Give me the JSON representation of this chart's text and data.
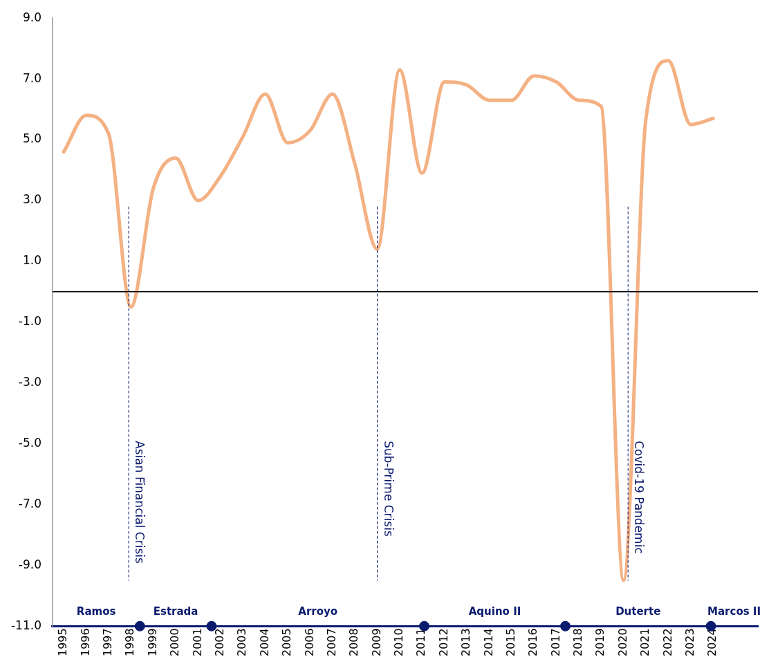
{
  "chart_data": {
    "type": "line",
    "x": [
      1995,
      1996,
      1997,
      1998,
      1999,
      2000,
      2001,
      2002,
      2003,
      2004,
      2005,
      2006,
      2007,
      2008,
      2009,
      2010,
      2011,
      2012,
      2013,
      2014,
      2015,
      2016,
      2017,
      2018,
      2019,
      2020,
      2021,
      2022,
      2023,
      2024
    ],
    "series": [
      {
        "type": "line",
        "color": "#f4b183",
        "marker": "none",
        "values": [
          4.6,
          5.8,
          5.2,
          -0.5,
          3.4,
          4.4,
          3.0,
          3.8,
          5.1,
          6.5,
          4.9,
          5.3,
          6.5,
          4.2,
          1.4,
          7.3,
          3.9,
          6.9,
          6.8,
          6.3,
          6.3,
          7.1,
          6.9,
          6.3,
          6.1,
          -9.5,
          5.7,
          7.6,
          5.5,
          5.7
        ]
      },
      {
        "type": "scatter",
        "color": "#0a1a6e",
        "marker": "circle",
        "x": [
          1998.4,
          2001.6,
          2011.1,
          2017.4,
          2023.9
        ],
        "values": [
          -11,
          -11,
          -11,
          -11,
          -11
        ]
      }
    ],
    "xlim": [
      1994.5,
      2026
    ],
    "xticks": [
      1995,
      1996,
      1997,
      1998,
      1999,
      2000,
      2001,
      2002,
      2003,
      2004,
      2005,
      2006,
      2007,
      2008,
      2009,
      2010,
      2011,
      2012,
      2013,
      2014,
      2015,
      2016,
      2017,
      2018,
      2019,
      2020,
      2021,
      2022,
      2023,
      2024
    ],
    "ylim": [
      -11,
      9
    ],
    "yticks": [
      {
        "value": -11,
        "label": "-11.0"
      },
      {
        "value": -9,
        "label": "-9.0"
      },
      {
        "value": -7,
        "label": "-7.0"
      },
      {
        "value": -5,
        "label": "-5.0"
      },
      {
        "value": -3,
        "label": "-3.0"
      },
      {
        "value": -1,
        "label": "-1.0"
      },
      {
        "value": 1,
        "label": "1.0"
      },
      {
        "value": 3,
        "label": "3.0"
      },
      {
        "value": 5,
        "label": "5.0"
      },
      {
        "value": 7,
        "label": "7.0"
      },
      {
        "value": 9,
        "label": "9.0"
      }
    ],
    "ref_lines": [
      {
        "axis": "y",
        "value": 0,
        "label": null,
        "color": "#000000",
        "line_style": "solid"
      },
      {
        "axis": "x",
        "value": 1997.9,
        "label": "Asian Financial Crisis",
        "color": "#0a1a6e",
        "line_style": "dashed"
      },
      {
        "axis": "x",
        "value": 2009,
        "label": "Sub-Prime Crisis",
        "color": "#0a1a6e",
        "line_style": "dashed"
      },
      {
        "axis": "x",
        "value": 2020.2,
        "label": "Covid-19 Pandemic",
        "color": "#0a1a6e",
        "line_style": "dashed"
      }
    ],
    "annotations": [
      "Ramos",
      "Estrada",
      "Arroyo",
      "Aquino II",
      "Duterte",
      "Marcos II"
    ]
  }
}
